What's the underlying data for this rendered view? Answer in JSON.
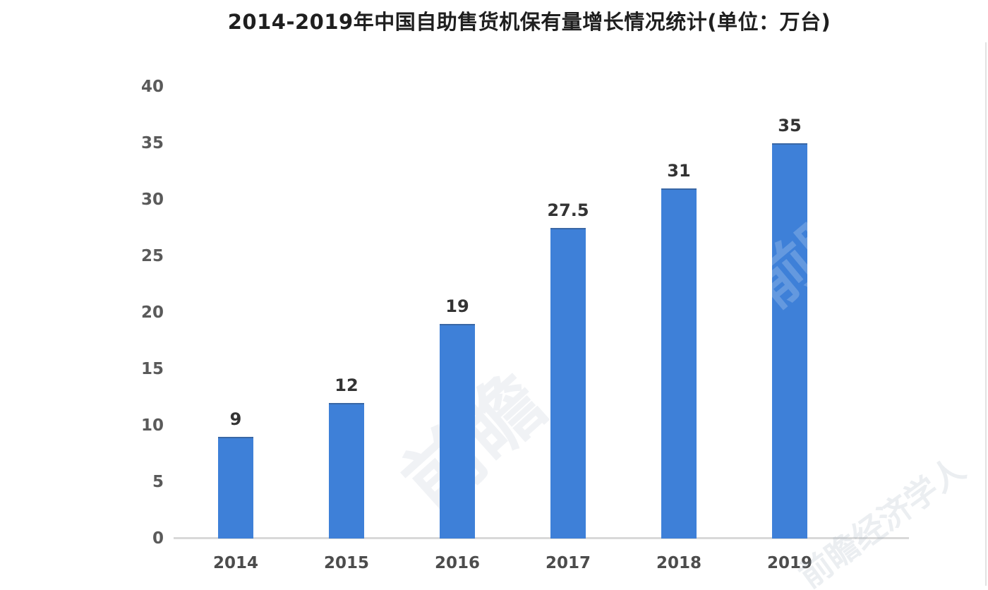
{
  "chart_data": {
    "type": "bar",
    "title": "2014-2019年中国自助售货机保有量增长情况统计(单位：万台)",
    "categories": [
      "2014",
      "2015",
      "2016",
      "2017",
      "2018",
      "2019"
    ],
    "values": [
      9,
      12,
      19,
      27.5,
      31,
      35
    ],
    "value_labels": [
      "9",
      "12",
      "19",
      "27.5",
      "31",
      "35"
    ],
    "xlabel": "",
    "ylabel": "",
    "ylim": [
      0,
      40
    ],
    "yticks": [
      0,
      5,
      10,
      15,
      20,
      25,
      30,
      35,
      40
    ],
    "grid": false,
    "legend_position": "none",
    "bar_color": "#3e80d8",
    "value_label_color": "#333333",
    "tick_label_color": "#5a5a5a",
    "axis_line_color": "#d9d9d9",
    "background_color": "#ffffff"
  },
  "watermarks": [
    {
      "text": "前瞻"
    },
    {
      "text": "前瞻"
    },
    {
      "text": "前瞻经济学人"
    }
  ]
}
